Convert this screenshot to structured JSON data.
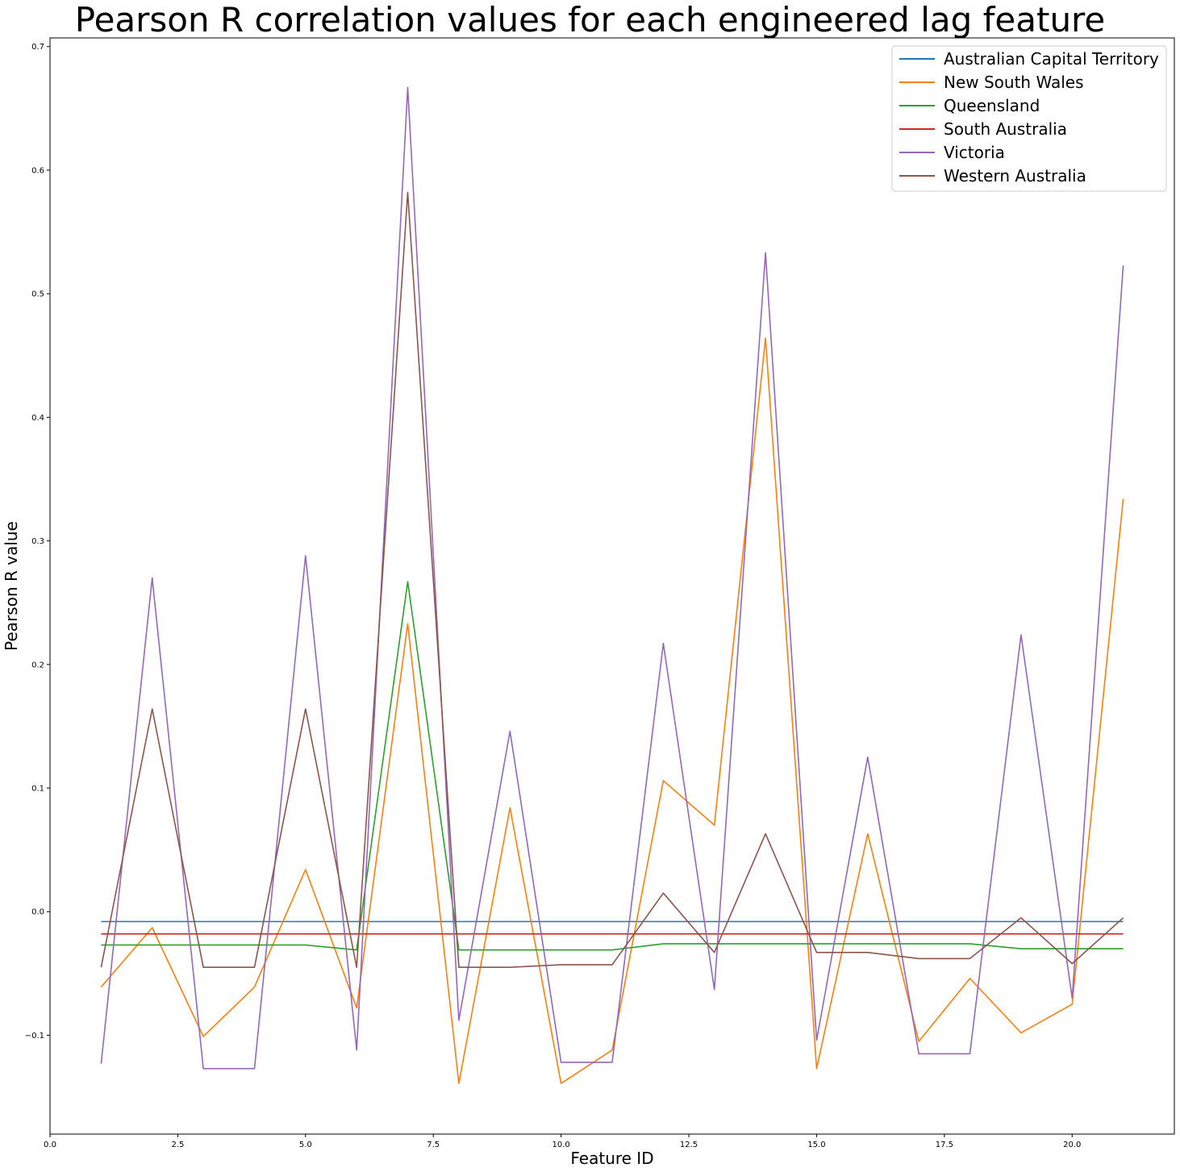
{
  "chart_data": {
    "type": "line",
    "title": "Pearson R correlation values for each engineered lag feature",
    "xlabel": "Feature ID",
    "ylabel": "Pearson R value",
    "xlim": [
      0,
      22
    ],
    "ylim": [
      -0.18,
      0.707
    ],
    "xticks": [
      0.0,
      2.5,
      5.0,
      7.5,
      10.0,
      12.5,
      15.0,
      17.5,
      20.0
    ],
    "xtick_labels": [
      "0.0",
      "2.5",
      "5.0",
      "7.5",
      "10.0",
      "12.5",
      "15.0",
      "17.5",
      "20.0"
    ],
    "yticks": [
      -0.1,
      0.0,
      0.1,
      0.2,
      0.3,
      0.4,
      0.5,
      0.6,
      0.7
    ],
    "ytick_labels": [
      "−0.1",
      "0.0",
      "0.1",
      "0.2",
      "0.3",
      "0.4",
      "0.5",
      "0.6",
      "0.7"
    ],
    "grid": false,
    "legend_position": "top-right",
    "x": [
      1,
      2,
      3,
      4,
      5,
      6,
      7,
      8,
      9,
      10,
      11,
      12,
      13,
      14,
      15,
      16,
      17,
      18,
      19,
      20,
      21
    ],
    "series": [
      {
        "name": "Australian Capital Territory",
        "color": "#1f77b4",
        "values": [
          -0.008,
          -0.008,
          -0.008,
          -0.008,
          -0.008,
          -0.008,
          -0.008,
          -0.008,
          -0.008,
          -0.008,
          -0.008,
          -0.008,
          -0.008,
          -0.008,
          -0.008,
          -0.008,
          -0.008,
          -0.008,
          -0.008,
          -0.008,
          -0.008
        ]
      },
      {
        "name": "New South Wales",
        "color": "#ff7f0e",
        "values": [
          -0.061,
          -0.013,
          -0.101,
          -0.061,
          0.034,
          -0.078,
          0.233,
          -0.139,
          0.084,
          -0.139,
          -0.112,
          0.106,
          0.07,
          0.464,
          -0.127,
          0.063,
          -0.105,
          -0.054,
          -0.098,
          -0.075,
          0.334
        ]
      },
      {
        "name": "Queensland",
        "color": "#2ca02c",
        "values": [
          -0.027,
          -0.027,
          -0.027,
          -0.027,
          -0.027,
          -0.031,
          0.267,
          -0.031,
          -0.031,
          -0.031,
          -0.031,
          -0.026,
          -0.026,
          -0.026,
          -0.026,
          -0.026,
          -0.026,
          -0.026,
          -0.03,
          -0.03,
          -0.03
        ]
      },
      {
        "name": "South Australia",
        "color": "#d62728",
        "values": [
          -0.018,
          -0.018,
          -0.018,
          -0.018,
          -0.018,
          -0.018,
          -0.018,
          -0.018,
          -0.018,
          -0.018,
          -0.018,
          -0.018,
          -0.018,
          -0.018,
          -0.018,
          -0.018,
          -0.018,
          -0.018,
          -0.018,
          -0.018,
          -0.018
        ]
      },
      {
        "name": "Victoria",
        "color": "#9467bd",
        "values": [
          -0.123,
          0.27,
          -0.127,
          -0.127,
          0.288,
          -0.112,
          0.667,
          -0.088,
          0.146,
          -0.122,
          -0.122,
          0.217,
          -0.063,
          0.533,
          -0.104,
          0.125,
          -0.115,
          -0.115,
          0.224,
          -0.07,
          0.523
        ]
      },
      {
        "name": "Western Australia",
        "color": "#8c564b",
        "values": [
          -0.045,
          0.164,
          -0.045,
          -0.045,
          0.164,
          -0.045,
          0.582,
          -0.045,
          -0.045,
          -0.043,
          -0.043,
          0.015,
          -0.033,
          0.063,
          -0.033,
          -0.033,
          -0.038,
          -0.038,
          -0.005,
          -0.042,
          -0.005
        ]
      }
    ]
  }
}
